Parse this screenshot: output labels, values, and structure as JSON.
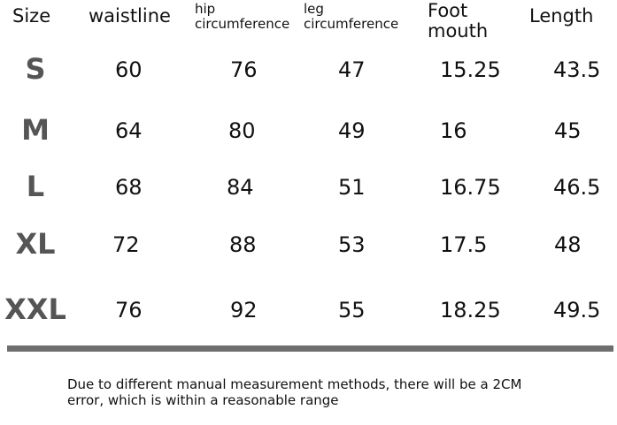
{
  "table": {
    "header": [
      [
        "Size"
      ],
      [
        "waistline"
      ],
      [
        "hip",
        "circumference"
      ],
      [
        "leg",
        "circumference"
      ],
      [
        "Foot",
        "mouth"
      ],
      [
        "Length"
      ]
    ],
    "rows": [
      [
        "S",
        "60",
        "76",
        "47",
        "15.25",
        "43.5"
      ],
      [
        "M",
        "64",
        "80",
        "49",
        "16",
        "45"
      ],
      [
        "L",
        "68",
        "84",
        "51",
        "16.75",
        "46.5"
      ],
      [
        "XL",
        "72",
        "88",
        "53",
        "17.5",
        "48"
      ],
      [
        "XXL",
        "76",
        "92",
        "55",
        "18.25",
        "49.5"
      ]
    ]
  },
  "note": {
    "lines": [
      "Due to different manual measurement methods, there will be a 2CM",
      "error, which is within a reasonable range"
    ]
  }
}
